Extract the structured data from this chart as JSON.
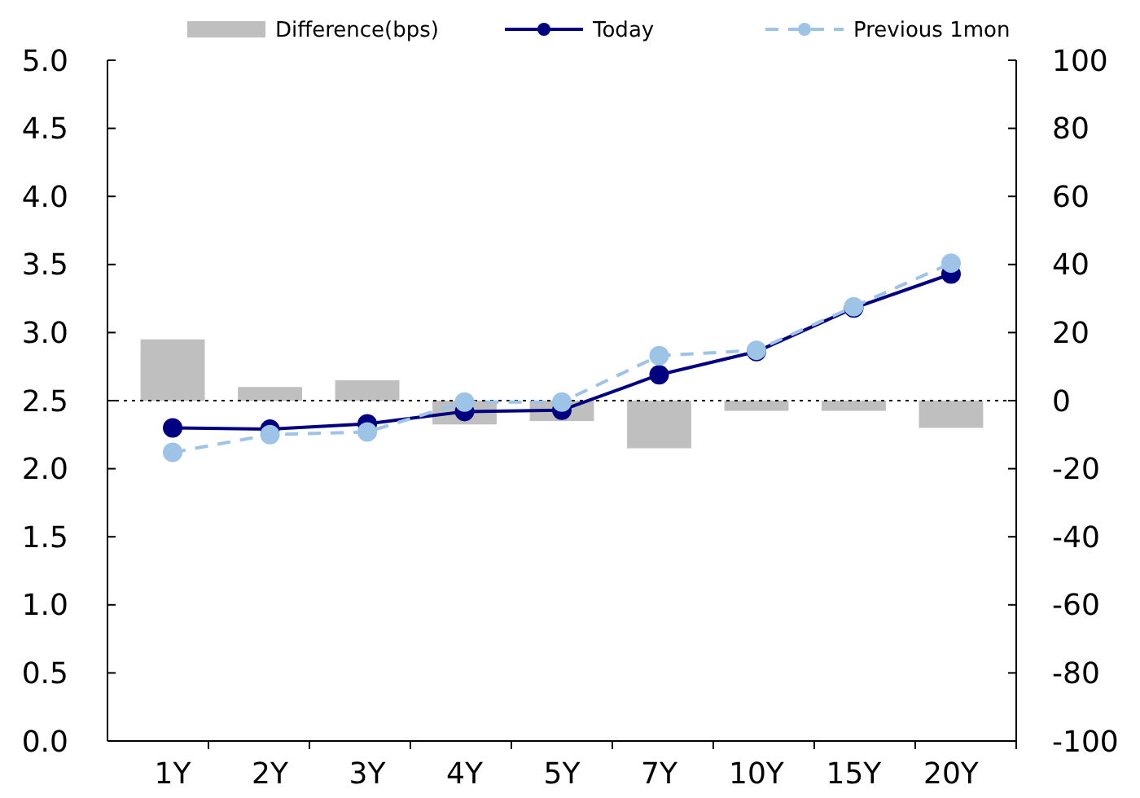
{
  "chart_data": {
    "type": "line",
    "categories": [
      "1Y",
      "2Y",
      "3Y",
      "4Y",
      "5Y",
      "7Y",
      "10Y",
      "15Y",
      "20Y"
    ],
    "series": [
      {
        "name": "Difference(bps)",
        "type": "bar",
        "axis": "y2",
        "color": "#bfbfbf",
        "values": [
          18,
          4,
          6,
          -7,
          -6,
          -14,
          -3,
          -3,
          -8
        ]
      },
      {
        "name": "Today",
        "color": "#000080",
        "marker": "circle",
        "line_style": "solid",
        "values": [
          2.3,
          2.29,
          2.33,
          2.42,
          2.43,
          2.69,
          2.86,
          3.18,
          3.43
        ]
      },
      {
        "name": "Previous 1mon",
        "color": "#9dc3e6",
        "marker": "circle",
        "line_style": "dashed",
        "values": [
          2.12,
          2.25,
          2.27,
          2.49,
          2.49,
          2.83,
          2.87,
          3.19,
          3.51
        ]
      }
    ],
    "ylim": [
      0,
      5
    ],
    "yticks": [
      {
        "value": 0,
        "label": "0.0"
      },
      {
        "value": 0.5,
        "label": "0.5"
      },
      {
        "value": 1,
        "label": "1.0"
      },
      {
        "value": 1.5,
        "label": "1.5"
      },
      {
        "value": 2,
        "label": "2.0"
      },
      {
        "value": 2.5,
        "label": "2.5"
      },
      {
        "value": 3,
        "label": "3.0"
      },
      {
        "value": 3.5,
        "label": "3.5"
      },
      {
        "value": 4,
        "label": "4.0"
      },
      {
        "value": 4.5,
        "label": "4.5"
      },
      {
        "value": 5,
        "label": "5.0"
      }
    ],
    "y2lim": [
      -100,
      100
    ],
    "y2ticks": [
      -100,
      -80,
      -60,
      -40,
      -20,
      0,
      20,
      40,
      60,
      80,
      100
    ],
    "ref_lines": [
      {
        "axis": "y2",
        "value": 0,
        "line_style": "dotted",
        "color": "#000000"
      }
    ],
    "grid": false,
    "legend": "top"
  }
}
